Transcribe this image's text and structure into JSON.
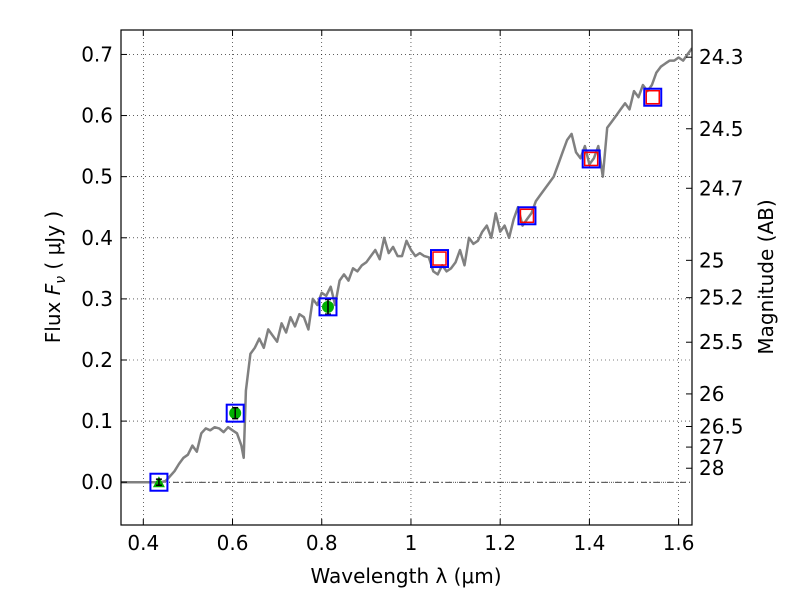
{
  "chart_data": {
    "type": "line",
    "xlabel": "Wavelength  λ (μm)",
    "ylabel": "Flux  F_ν  ( μJy )",
    "ylabel_parts": {
      "prefix": "Flux  ",
      "symbol": "F",
      "subscript": "ν",
      "suffix": "  ( μJy )"
    },
    "ylabel_right": "Magnitude (AB)",
    "xlim": [
      0.35,
      1.63
    ],
    "ylim": [
      -0.07,
      0.74
    ],
    "x_ticks": [
      {
        "value": 0.4,
        "label": "0.4"
      },
      {
        "value": 0.6,
        "label": "0.6"
      },
      {
        "value": 0.8,
        "label": "0.8"
      },
      {
        "value": 1.0,
        "label": "1"
      },
      {
        "value": 1.2,
        "label": "1.2"
      },
      {
        "value": 1.4,
        "label": "1.4"
      },
      {
        "value": 1.6,
        "label": "1.6"
      }
    ],
    "y_ticks": [
      {
        "value": 0.0,
        "label": "0.0"
      },
      {
        "value": 0.1,
        "label": "0.1"
      },
      {
        "value": 0.2,
        "label": "0.2"
      },
      {
        "value": 0.3,
        "label": "0.3"
      },
      {
        "value": 0.4,
        "label": "0.4"
      },
      {
        "value": 0.5,
        "label": "0.5"
      },
      {
        "value": 0.6,
        "label": "0.6"
      },
      {
        "value": 0.7,
        "label": "0.7"
      }
    ],
    "mag_ticks": [
      {
        "flux": 0.6955,
        "label": "24.3"
      },
      {
        "flux": 0.5784,
        "label": "24.5"
      },
      {
        "flux": 0.481,
        "label": "24.7"
      },
      {
        "flux": 0.3631,
        "label": "25"
      },
      {
        "flux": 0.302,
        "label": "25.2"
      },
      {
        "flux": 0.2291,
        "label": "25.5"
      },
      {
        "flux": 0.1445,
        "label": "26"
      },
      {
        "flux": 0.0912,
        "label": "26.5"
      },
      {
        "flux": 0.0575,
        "label": "27"
      },
      {
        "flux": 0.0229,
        "label": "28"
      }
    ],
    "grid": true,
    "zero_line": true,
    "colors": {
      "sed": "#808080",
      "model_box": "#0000ff",
      "upper_box": "#ff0000",
      "detection": "#00b000",
      "errorbar": "#000000"
    },
    "series": [
      {
        "name": "SED template",
        "x": [
          0.35,
          0.4,
          0.44,
          0.45,
          0.46,
          0.47,
          0.48,
          0.49,
          0.5,
          0.51,
          0.52,
          0.53,
          0.54,
          0.55,
          0.56,
          0.57,
          0.58,
          0.59,
          0.6,
          0.61,
          0.62,
          0.625,
          0.63,
          0.64,
          0.65,
          0.66,
          0.67,
          0.68,
          0.69,
          0.7,
          0.71,
          0.72,
          0.73,
          0.74,
          0.75,
          0.76,
          0.77,
          0.78,
          0.79,
          0.8,
          0.81,
          0.82,
          0.83,
          0.84,
          0.85,
          0.86,
          0.87,
          0.88,
          0.89,
          0.9,
          0.91,
          0.92,
          0.93,
          0.94,
          0.95,
          0.96,
          0.97,
          0.98,
          0.99,
          1.0,
          1.01,
          1.02,
          1.03,
          1.04,
          1.05,
          1.06,
          1.07,
          1.08,
          1.09,
          1.1,
          1.11,
          1.12,
          1.13,
          1.14,
          1.15,
          1.16,
          1.17,
          1.18,
          1.19,
          1.2,
          1.21,
          1.22,
          1.23,
          1.24,
          1.25,
          1.26,
          1.27,
          1.28,
          1.29,
          1.3,
          1.31,
          1.32,
          1.33,
          1.34,
          1.35,
          1.36,
          1.37,
          1.38,
          1.39,
          1.4,
          1.41,
          1.42,
          1.43,
          1.44,
          1.45,
          1.46,
          1.47,
          1.48,
          1.49,
          1.5,
          1.51,
          1.52,
          1.53,
          1.54,
          1.55,
          1.56,
          1.57,
          1.58,
          1.59,
          1.6,
          1.61,
          1.62,
          1.63
        ],
        "y": [
          0.0,
          0.0,
          0.0,
          0.002,
          0.01,
          0.018,
          0.03,
          0.04,
          0.045,
          0.06,
          0.05,
          0.08,
          0.088,
          0.085,
          0.09,
          0.088,
          0.082,
          0.09,
          0.085,
          0.08,
          0.06,
          0.04,
          0.15,
          0.21,
          0.22,
          0.235,
          0.22,
          0.25,
          0.24,
          0.23,
          0.26,
          0.245,
          0.27,
          0.255,
          0.275,
          0.27,
          0.25,
          0.3,
          0.29,
          0.31,
          0.305,
          0.32,
          0.29,
          0.33,
          0.34,
          0.33,
          0.35,
          0.345,
          0.355,
          0.36,
          0.37,
          0.38,
          0.365,
          0.4,
          0.375,
          0.385,
          0.37,
          0.37,
          0.395,
          0.38,
          0.37,
          0.375,
          0.37,
          0.368,
          0.345,
          0.34,
          0.355,
          0.345,
          0.35,
          0.36,
          0.38,
          0.355,
          0.4,
          0.39,
          0.395,
          0.41,
          0.42,
          0.4,
          0.44,
          0.41,
          0.42,
          0.4,
          0.43,
          0.45,
          0.42,
          0.43,
          0.44,
          0.46,
          0.47,
          0.48,
          0.49,
          0.5,
          0.52,
          0.54,
          0.56,
          0.57,
          0.54,
          0.53,
          0.55,
          0.52,
          0.53,
          0.55,
          0.5,
          0.58,
          0.59,
          0.6,
          0.61,
          0.62,
          0.61,
          0.64,
          0.63,
          0.65,
          0.64,
          0.65,
          0.67,
          0.68,
          0.685,
          0.69,
          0.69,
          0.695,
          0.69,
          0.7,
          0.71
        ]
      }
    ],
    "model_points": [
      {
        "x": 0.435,
        "y": 0.0
      },
      {
        "x": 0.606,
        "y": 0.113
      },
      {
        "x": 0.814,
        "y": 0.287
      },
      {
        "x": 1.064,
        "y": 0.366
      },
      {
        "x": 1.26,
        "y": 0.436
      },
      {
        "x": 1.404,
        "y": 0.529
      },
      {
        "x": 1.542,
        "y": 0.63
      }
    ],
    "upper_limit_points": [
      {
        "x": 1.064,
        "y": 0.366
      },
      {
        "x": 1.26,
        "y": 0.436
      },
      {
        "x": 1.404,
        "y": 0.529
      },
      {
        "x": 1.542,
        "y": 0.63
      }
    ],
    "detections": [
      {
        "x": 0.435,
        "y": 0.0,
        "err": 0.005,
        "marker": "triangle"
      },
      {
        "x": 0.606,
        "y": 0.113,
        "err": 0.009,
        "marker": "circle"
      },
      {
        "x": 0.814,
        "y": 0.287,
        "err": 0.012,
        "marker": "circle"
      }
    ]
  }
}
